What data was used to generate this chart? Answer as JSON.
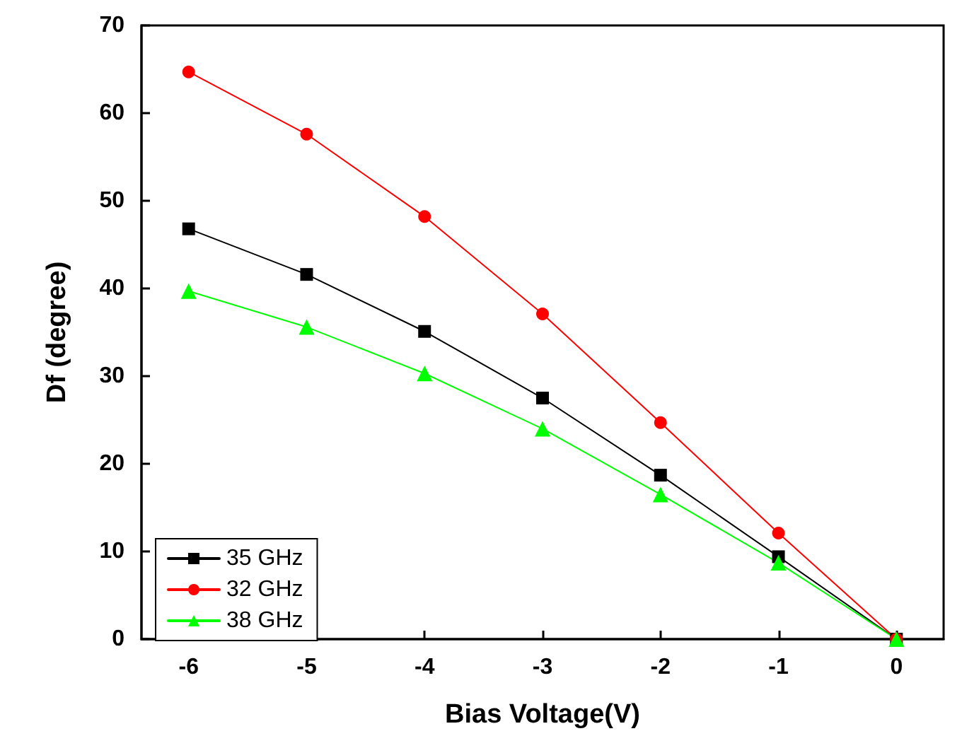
{
  "chart_data": {
    "type": "line",
    "xlabel": "Bias Voltage(V)",
    "ylabel": "Df (degree)",
    "x": [
      -6,
      -5,
      -4,
      -3,
      -2,
      -1,
      0
    ],
    "series": [
      {
        "name": "35 GHz",
        "color": "#000000",
        "marker": "square",
        "values": [
          46.8,
          41.6,
          35.1,
          27.5,
          18.7,
          9.4,
          0
        ]
      },
      {
        "name": "32 GHz",
        "color": "#ff0000",
        "marker": "circle",
        "values": [
          64.7,
          57.6,
          48.2,
          37.1,
          24.7,
          12.1,
          0
        ]
      },
      {
        "name": "38 GHz",
        "color": "#00ff00",
        "marker": "triangle",
        "values": [
          39.7,
          35.6,
          30.3,
          24.0,
          16.5,
          8.7,
          0
        ]
      }
    ],
    "xlim": [
      -6.4,
      0.4
    ],
    "xticks": [
      -6,
      -5,
      -4,
      -3,
      -2,
      -1,
      0
    ],
    "ylim": [
      0,
      70
    ],
    "yticks": [
      0,
      10,
      20,
      30,
      40,
      50,
      60,
      70
    ],
    "grid": false,
    "legend": "bottom left",
    "line_style": "solid"
  }
}
